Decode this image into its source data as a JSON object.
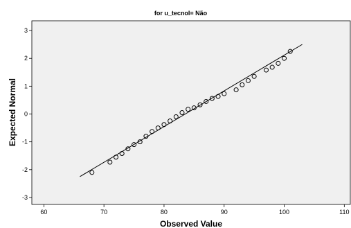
{
  "chart_data": {
    "type": "scatter",
    "title": "for u_tecnol= Não",
    "xlabel": "Observed Value",
    "ylabel": "Expected Normal",
    "xlim": [
      58,
      111
    ],
    "ylim": [
      -3.25,
      3.35
    ],
    "xticks": [
      60,
      70,
      80,
      90,
      100,
      110
    ],
    "yticks": [
      -3,
      -2,
      -1,
      0,
      1,
      2,
      3
    ],
    "grid": false,
    "plot_background": "#f0f0f0",
    "marker": "open-circle",
    "reference_line": {
      "x": [
        66,
        103
      ],
      "y": [
        -2.25,
        2.5
      ]
    },
    "points": [
      {
        "x": 68,
        "y": -2.1
      },
      {
        "x": 71,
        "y": -1.73
      },
      {
        "x": 72,
        "y": -1.55
      },
      {
        "x": 73,
        "y": -1.42
      },
      {
        "x": 74,
        "y": -1.25
      },
      {
        "x": 75,
        "y": -1.1
      },
      {
        "x": 76,
        "y": -1.0
      },
      {
        "x": 77,
        "y": -0.8
      },
      {
        "x": 78,
        "y": -0.63
      },
      {
        "x": 79,
        "y": -0.5
      },
      {
        "x": 80,
        "y": -0.38
      },
      {
        "x": 81,
        "y": -0.25
      },
      {
        "x": 82,
        "y": -0.1
      },
      {
        "x": 83,
        "y": 0.05
      },
      {
        "x": 84,
        "y": 0.17
      },
      {
        "x": 85,
        "y": 0.22
      },
      {
        "x": 86,
        "y": 0.33
      },
      {
        "x": 87,
        "y": 0.45
      },
      {
        "x": 88,
        "y": 0.56
      },
      {
        "x": 89,
        "y": 0.63
      },
      {
        "x": 90,
        "y": 0.73
      },
      {
        "x": 92,
        "y": 0.87
      },
      {
        "x": 93,
        "y": 1.05
      },
      {
        "x": 94,
        "y": 1.2
      },
      {
        "x": 95,
        "y": 1.35
      },
      {
        "x": 97,
        "y": 1.58
      },
      {
        "x": 98,
        "y": 1.68
      },
      {
        "x": 99,
        "y": 1.82
      },
      {
        "x": 100,
        "y": 2.0
      },
      {
        "x": 101,
        "y": 2.25
      }
    ]
  }
}
